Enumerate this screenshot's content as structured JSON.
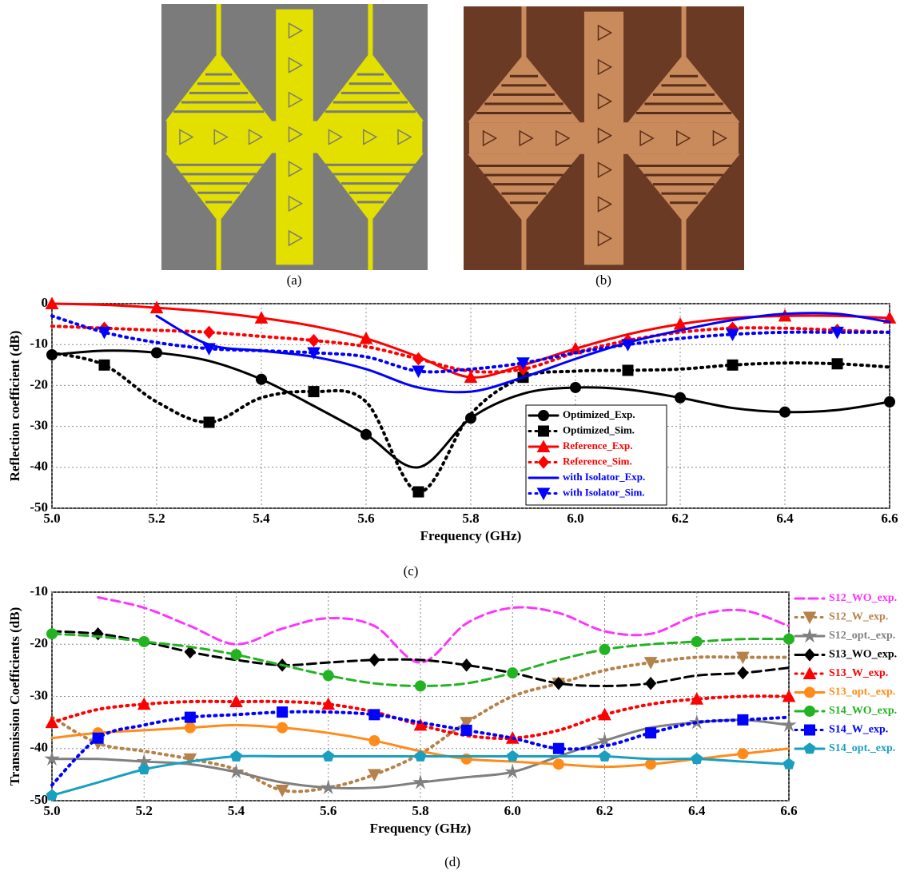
{
  "panels": [
    {
      "caption": "(a)"
    },
    {
      "caption": "(b)"
    }
  ],
  "chart_data": [
    {
      "type": "line",
      "caption": "(c)",
      "xlabel": "Frequency (GHz)",
      "ylabel": "Reflection coefficient (dB)",
      "x": [
        5.0,
        5.1,
        5.2,
        5.3,
        5.4,
        5.5,
        5.6,
        5.7,
        5.8,
        5.9,
        6.0,
        6.1,
        6.2,
        6.3,
        6.4,
        6.5,
        6.6
      ],
      "xlim": [
        5.0,
        6.6
      ],
      "ylim": [
        -50,
        0
      ],
      "xticks": [
        {
          "value": 5.0,
          "label": "5.0"
        },
        5.2,
        5.4,
        5.6,
        5.8,
        {
          "value": 6.0,
          "label": "6.0"
        },
        6.2,
        6.4,
        6.6
      ],
      "yticks": [
        -50,
        -40,
        -30,
        -20,
        -10,
        0
      ],
      "grid": true,
      "legend": "lower right",
      "series": [
        {
          "name": "Optimized_Exp.",
          "color": "#000000",
          "dash": "solid",
          "marker": "circle",
          "values": [
            -12.5,
            -11.5,
            -12,
            -14,
            -18.5,
            -25,
            -32,
            -40,
            -28,
            -22,
            -20.5,
            -21,
            -23,
            -25.5,
            -26.5,
            -26,
            -24
          ]
        },
        {
          "name": "Optimized_Sim.",
          "color": "#000000",
          "dash": "dotted",
          "marker": "square",
          "values": [
            -12,
            -15,
            -24,
            -29,
            -23,
            -21.5,
            -24,
            -46,
            -27,
            -18,
            -16.5,
            -16.3,
            -16,
            -15,
            -14.5,
            -14.7,
            -15.5
          ]
        },
        {
          "name": "Reference_Exp.",
          "color": "#ff0000",
          "dash": "solid",
          "marker": "triangle",
          "values": [
            0,
            -0.3,
            -1,
            -2,
            -3.5,
            -5.5,
            -8.5,
            -13,
            -18,
            -15,
            -11,
            -7.5,
            -5,
            -3.5,
            -3,
            -3,
            -3.5
          ]
        },
        {
          "name": "Reference_Sim.",
          "color": "#ff0000",
          "dash": "dotted",
          "marker": "diamond",
          "values": [
            -5.5,
            -6,
            -6.5,
            -7,
            -8,
            -9,
            -10.5,
            -13.5,
            -16.5,
            -16,
            -12,
            -9,
            -7,
            -6,
            -6,
            -6.5,
            -7
          ]
        },
        {
          "name": "with Isolator_Exp.",
          "color": "#0000ff",
          "dash": "solid",
          "marker": "none",
          "values": [
            null,
            null,
            -3,
            -10,
            -11.5,
            -13,
            -16,
            -20.5,
            -21.5,
            -18,
            -13.5,
            -9.5,
            -6.5,
            -4,
            -2.5,
            -2.5,
            -4.5
          ]
        },
        {
          "name": "with Isolator_Sim.",
          "color": "#0000ff",
          "dash": "dotted",
          "marker": "triangle-down",
          "values": [
            -3,
            -7,
            -9.5,
            -11,
            -11.5,
            -12,
            -13,
            -16.5,
            -16,
            -14.5,
            -12,
            -10,
            -8.5,
            -7.5,
            -7,
            -7,
            -7
          ]
        }
      ]
    },
    {
      "type": "line",
      "caption": "(d)",
      "xlabel": "Frequency (GHz)",
      "ylabel": "Transmission Coefficients (dB)",
      "x": [
        5.0,
        5.1,
        5.2,
        5.3,
        5.4,
        5.5,
        5.6,
        5.7,
        5.8,
        5.9,
        6.0,
        6.1,
        6.2,
        6.3,
        6.4,
        6.5,
        6.6
      ],
      "xlim": [
        5.0,
        6.6
      ],
      "ylim": [
        -50,
        -10
      ],
      "xticks": [
        {
          "value": 5.0,
          "label": "5.0"
        },
        5.2,
        5.4,
        5.6,
        5.8,
        {
          "value": 6.0,
          "label": "6.0"
        },
        6.2,
        6.4,
        6.6
      ],
      "yticks": [
        -50,
        -40,
        -30,
        -20,
        -10
      ],
      "grid": true,
      "legend": "right",
      "series": [
        {
          "name": "S12_WO_exp.",
          "color": "#ff33ff",
          "dash": "dashed",
          "marker": "none",
          "values": [
            null,
            -11,
            -13,
            -16.5,
            -20,
            -17,
            -15,
            -16.5,
            -23.5,
            -16,
            -13,
            -14,
            -17.5,
            -18,
            -14.5,
            -13.5,
            -16.5
          ]
        },
        {
          "name": "S12_W_exp.",
          "color": "#b5824a",
          "dash": "dotted",
          "marker": "triangle-down",
          "values": [
            -34,
            -39,
            -40.5,
            -42,
            -44,
            -48,
            -47.5,
            -45,
            -41,
            -35,
            -30,
            -27.5,
            -25,
            -23.5,
            -22.5,
            -22.5,
            -22.5
          ]
        },
        {
          "name": "S12_opt._exp.",
          "color": "#808080",
          "dash": "solid",
          "marker": "star",
          "values": [
            -42,
            -42,
            -42.5,
            -43,
            -44.5,
            -46.5,
            -47.5,
            -47.5,
            -46.5,
            -45.5,
            -44.5,
            -41.5,
            -38.5,
            -36,
            -35,
            -34.5,
            -35.5
          ]
        },
        {
          "name": "S13_WO_exp.",
          "color": "#000000",
          "dash": "dashed",
          "marker": "diamond",
          "values": [
            -17.5,
            -18,
            -19.5,
            -21.5,
            -23,
            -24,
            -23.5,
            -23,
            -23,
            -24,
            -25.5,
            -27.5,
            -28,
            -27.5,
            -26,
            -25.5,
            -24.5
          ]
        },
        {
          "name": "S13_W_exp.",
          "color": "#ff0000",
          "dash": "dotted",
          "marker": "triangle",
          "values": [
            -35,
            -32.5,
            -31.5,
            -31,
            -31,
            -31,
            -31.5,
            -33,
            -35.5,
            -37.5,
            -38,
            -36.5,
            -33.5,
            -31.5,
            -30.5,
            -30,
            -30
          ]
        },
        {
          "name": "S13_opt._exp.",
          "color": "#ff8c1a",
          "dash": "solid",
          "marker": "circle",
          "values": [
            -38,
            -37,
            -36.5,
            -36,
            -35.5,
            -36,
            -37,
            -38.5,
            -40.5,
            -42,
            -42.5,
            -43,
            -43.5,
            -43,
            -42,
            -41,
            -40
          ]
        },
        {
          "name": "S14_WO_exp.",
          "color": "#22b322",
          "dash": "dashed",
          "marker": "circle",
          "values": [
            -18,
            -18.5,
            -19.5,
            -20.5,
            -22,
            -24,
            -26,
            -27.5,
            -28,
            -27.5,
            -25.5,
            -23,
            -21,
            -20,
            -19.5,
            -19,
            -19
          ]
        },
        {
          "name": "S14_W_exp.",
          "color": "#0000ff",
          "dash": "dotted",
          "marker": "square",
          "values": [
            -47,
            -38,
            -35.5,
            -34,
            -33.5,
            -33,
            -33,
            -33.5,
            -35,
            -36.5,
            -38,
            -40,
            -39.5,
            -37,
            -35,
            -34.5,
            -34
          ]
        },
        {
          "name": "S14_opt._exp.",
          "color": "#1a9fc0",
          "dash": "solid",
          "marker": "pentagon",
          "values": [
            -49,
            -46.5,
            -44,
            -42.5,
            -41.5,
            -41.5,
            -41.5,
            -41.5,
            -41.5,
            -41.5,
            -41.5,
            -41.5,
            -41.5,
            -42,
            -42,
            -42.5,
            -43
          ]
        }
      ]
    }
  ]
}
